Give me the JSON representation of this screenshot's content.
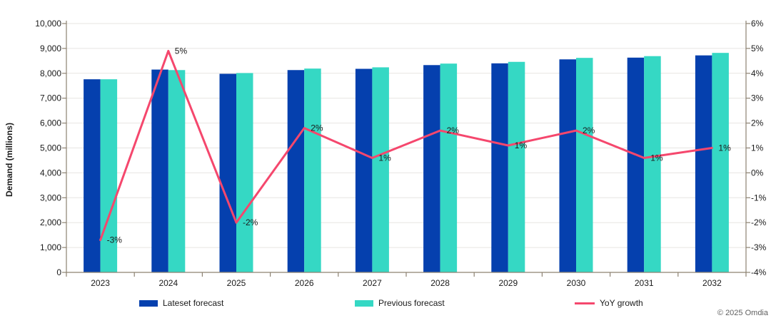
{
  "chart_data": {
    "type": "combo: grouped bar + line (dual axis)",
    "categories": [
      "2023",
      "2024",
      "2025",
      "2026",
      "2027",
      "2028",
      "2029",
      "2030",
      "2031",
      "2032"
    ],
    "series": [
      {
        "name": "Lateset forecast",
        "type": "bar",
        "axis": "left",
        "color": "#0540ae",
        "values": [
          7760,
          8150,
          7980,
          8130,
          8180,
          8330,
          8400,
          8560,
          8630,
          8720
        ]
      },
      {
        "name": "Previous forecast",
        "type": "bar",
        "axis": "left",
        "color": "#35d8c4",
        "values": [
          7760,
          8130,
          8010,
          8190,
          8240,
          8390,
          8460,
          8620,
          8690,
          8820
        ]
      },
      {
        "name": "YoY growth",
        "type": "line",
        "axis": "right",
        "color": "#f5476d",
        "values": [
          -2.7,
          4.9,
          -2.0,
          1.8,
          0.6,
          1.7,
          1.1,
          1.7,
          0.6,
          1.0
        ],
        "point_labels": [
          "-3%",
          "5%",
          "-2%",
          "2%",
          "1%",
          "2%",
          "1%",
          "2%",
          "1%",
          "1%"
        ]
      }
    ],
    "left_axis": {
      "label": "Demand (millions)",
      "min": 0,
      "max": 10000,
      "step": 1000,
      "tick_labels": [
        "0",
        "1,000",
        "2,000",
        "3,000",
        "4,000",
        "5,000",
        "6,000",
        "7,000",
        "8,000",
        "9,000",
        "10,000"
      ]
    },
    "right_axis": {
      "min": -4,
      "max": 6,
      "step": 1,
      "tick_labels": [
        "-4%",
        "-3%",
        "-2%",
        "-1%",
        "0%",
        "1%",
        "2%",
        "3%",
        "4%",
        "5%",
        "6%"
      ]
    },
    "grid": true,
    "legend_position": "bottom"
  },
  "footer": {
    "copyright": "© 2025 Omdia"
  },
  "colors": {
    "axis": "#8d8272",
    "grid": "#e7e5e2",
    "text": "#1a1a1a",
    "muted": "#5f5f5f",
    "background": "#ffffff"
  }
}
